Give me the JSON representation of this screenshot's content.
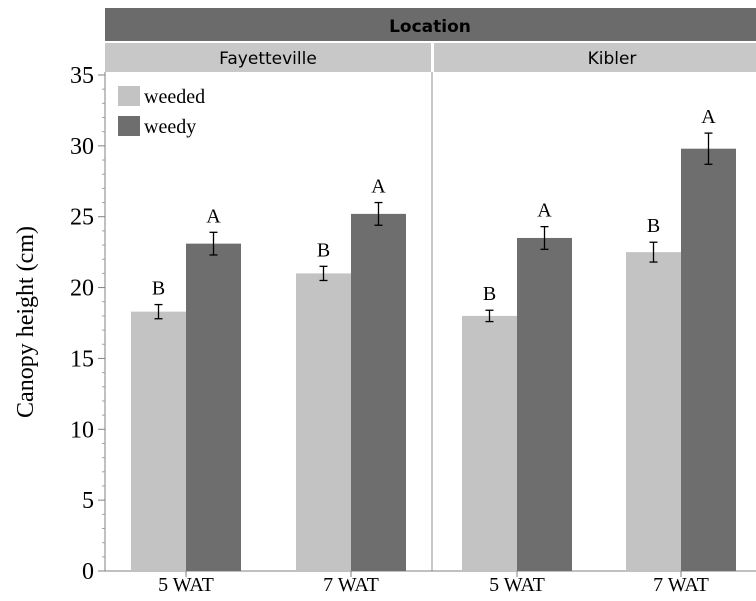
{
  "chart_data": {
    "type": "bar",
    "facet_title": "Location",
    "facets": [
      "Fayetteville",
      "Kibler"
    ],
    "categories": [
      "5 WAT",
      "7 WAT"
    ],
    "ylabel": "Canopy height (cm)",
    "ylim": [
      0,
      35
    ],
    "yticks": [
      0,
      5,
      10,
      15,
      20,
      25,
      30,
      35
    ],
    "legend": {
      "position": "top-left",
      "entries": [
        "weeded",
        "weedy"
      ]
    },
    "colors": {
      "weeded": "#c3c3c3",
      "weedy": "#6e6e6e",
      "header": "#6b6b6b",
      "subheader": "#c8c8c8"
    },
    "series": [
      {
        "name": "weeded",
        "values": {
          "Fayetteville": [
            18.3,
            21.0
          ],
          "Kibler": [
            18.0,
            22.5
          ]
        },
        "errors": {
          "Fayetteville": [
            0.5,
            0.5
          ],
          "Kibler": [
            0.4,
            0.7
          ]
        },
        "letters": {
          "Fayetteville": [
            "B",
            "B"
          ],
          "Kibler": [
            "B",
            "B"
          ]
        }
      },
      {
        "name": "weedy",
        "values": {
          "Fayetteville": [
            23.1,
            25.2
          ],
          "Kibler": [
            23.5,
            29.8
          ]
        },
        "errors": {
          "Fayetteville": [
            0.8,
            0.8
          ],
          "Kibler": [
            0.8,
            1.1
          ]
        },
        "letters": {
          "Fayetteville": [
            "A",
            "A"
          ],
          "Kibler": [
            "A",
            "A"
          ]
        }
      }
    ]
  }
}
